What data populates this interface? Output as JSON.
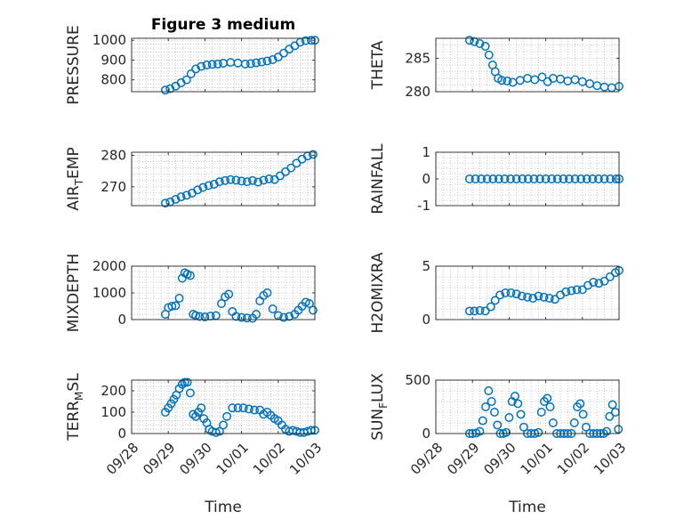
{
  "colors": {
    "marker": "#0072BD",
    "axis": "#262626",
    "grid": "#bdbdbd"
  },
  "chart_data": [
    {
      "type": "scatter",
      "key": "pressure",
      "title": "Figure 3 medium",
      "ylabel": "PRESSURE",
      "ylabel_parts": [],
      "xlim": [
        0,
        5
      ],
      "ylim": [
        740,
        1010
      ],
      "yticks": [
        800,
        900,
        1000
      ],
      "ytick_labels": [
        "800",
        "900",
        "1000"
      ],
      "xticks": [
        0,
        1,
        2,
        3,
        4,
        5
      ],
      "xtick_labels": [
        "09/28",
        "09/29",
        "09/30",
        "10/01",
        "10/02",
        "10/03"
      ],
      "show_xticklabels": false,
      "xlabel": "",
      "x": [
        0.92,
        1.05,
        1.2,
        1.35,
        1.5,
        1.62,
        1.75,
        1.9,
        2.05,
        2.2,
        2.35,
        2.5,
        2.7,
        2.9,
        3.1,
        3.25,
        3.4,
        3.55,
        3.7,
        3.85,
        4.0,
        4.15,
        4.3,
        4.45,
        4.6,
        4.75,
        4.9,
        5.0
      ],
      "y": [
        748,
        755,
        768,
        785,
        800,
        830,
        855,
        868,
        875,
        878,
        880,
        884,
        888,
        885,
        880,
        882,
        886,
        890,
        895,
        902,
        915,
        935,
        955,
        972,
        990,
        998,
        1000,
        1000
      ]
    },
    {
      "type": "scatter",
      "key": "theta",
      "title": "",
      "ylabel": "THETA",
      "ylabel_parts": [],
      "xlim": [
        0,
        5
      ],
      "ylim": [
        280,
        288
      ],
      "yticks": [
        280,
        285
      ],
      "ytick_labels": [
        "280",
        "285"
      ],
      "xticks": [
        0,
        1,
        2,
        3,
        4,
        5
      ],
      "xtick_labels": [
        "09/28",
        "09/29",
        "09/30",
        "10/01",
        "10/02",
        "10/03"
      ],
      "show_xticklabels": false,
      "xlabel": "",
      "x": [
        0.92,
        1.05,
        1.2,
        1.35,
        1.45,
        1.55,
        1.62,
        1.7,
        1.8,
        1.95,
        2.1,
        2.3,
        2.5,
        2.7,
        2.9,
        3.05,
        3.2,
        3.4,
        3.6,
        3.8,
        4.0,
        4.2,
        4.4,
        4.6,
        4.8,
        5.0
      ],
      "y": [
        287.7,
        287.5,
        287.2,
        286.8,
        285.5,
        284.0,
        283.0,
        282.0,
        281.7,
        281.6,
        281.4,
        281.7,
        282.0,
        281.8,
        282.2,
        281.5,
        282.0,
        281.9,
        281.6,
        281.8,
        281.5,
        281.2,
        280.9,
        280.7,
        280.6,
        280.8
      ]
    },
    {
      "type": "scatter",
      "key": "air_temp",
      "title": "",
      "ylabel": "",
      "ylabel_parts": [
        "AIR",
        "T",
        "EMP"
      ],
      "xlim": [
        0,
        5
      ],
      "ylim": [
        264,
        281
      ],
      "yticks": [
        270,
        280
      ],
      "ytick_labels": [
        "270",
        "280"
      ],
      "xticks": [
        0,
        1,
        2,
        3,
        4,
        5
      ],
      "xtick_labels": [
        "09/28",
        "09/29",
        "09/30",
        "10/01",
        "10/02",
        "10/03"
      ],
      "show_xticklabels": false,
      "xlabel": "",
      "x": [
        0.92,
        1.05,
        1.2,
        1.35,
        1.5,
        1.65,
        1.8,
        1.95,
        2.1,
        2.25,
        2.4,
        2.55,
        2.7,
        2.85,
        3.0,
        3.15,
        3.3,
        3.45,
        3.6,
        3.75,
        3.9,
        4.05,
        4.2,
        4.35,
        4.5,
        4.65,
        4.8,
        4.95
      ],
      "y": [
        264.8,
        265.2,
        266.0,
        266.8,
        267.3,
        268.0,
        269.0,
        269.8,
        270.4,
        270.8,
        271.6,
        272.0,
        272.3,
        272.1,
        271.8,
        271.6,
        272.0,
        271.5,
        272.1,
        272.5,
        272.3,
        273.5,
        274.8,
        276.0,
        277.5,
        278.8,
        279.8,
        280.3
      ]
    },
    {
      "type": "scatter",
      "key": "rainfall",
      "title": "",
      "ylabel": "RAINFALL",
      "ylabel_parts": [],
      "xlim": [
        0,
        5
      ],
      "ylim": [
        -1,
        1
      ],
      "yticks": [
        -1,
        0,
        1
      ],
      "ytick_labels": [
        "-1",
        "0",
        "1"
      ],
      "xticks": [
        0,
        1,
        2,
        3,
        4,
        5
      ],
      "xtick_labels": [
        "09/28",
        "09/29",
        "09/30",
        "10/01",
        "10/02",
        "10/03"
      ],
      "show_xticklabels": false,
      "xlabel": "",
      "x": [
        0.92,
        1.08,
        1.24,
        1.4,
        1.56,
        1.72,
        1.88,
        2.04,
        2.2,
        2.36,
        2.52,
        2.68,
        2.84,
        3.0,
        3.16,
        3.32,
        3.48,
        3.64,
        3.8,
        3.96,
        4.12,
        4.28,
        4.44,
        4.6,
        4.76,
        4.92,
        5.0
      ],
      "y": [
        0,
        0,
        0,
        0,
        0,
        0,
        0,
        0,
        0,
        0,
        0,
        0,
        0,
        0,
        0,
        0,
        0,
        0,
        0,
        0,
        0,
        0,
        0,
        0,
        0,
        0,
        0
      ]
    },
    {
      "type": "scatter",
      "key": "mixdepth",
      "title": "",
      "ylabel": "MIXDEPTH",
      "ylabel_parts": [],
      "xlim": [
        0,
        5
      ],
      "ylim": [
        0,
        2000
      ],
      "yticks": [
        0,
        1000,
        2000
      ],
      "ytick_labels": [
        "0",
        "1000",
        "2000"
      ],
      "xticks": [
        0,
        1,
        2,
        3,
        4,
        5
      ],
      "xtick_labels": [
        "09/28",
        "09/29",
        "09/30",
        "10/01",
        "10/02",
        "10/03"
      ],
      "show_xticklabels": false,
      "xlabel": "",
      "x": [
        0.92,
        1.0,
        1.1,
        1.2,
        1.3,
        1.38,
        1.45,
        1.52,
        1.6,
        1.68,
        1.75,
        1.85,
        2.0,
        2.15,
        2.3,
        2.45,
        2.55,
        2.65,
        2.75,
        2.85,
        3.0,
        3.15,
        3.3,
        3.4,
        3.5,
        3.6,
        3.7,
        3.85,
        4.0,
        4.15,
        4.3,
        4.45,
        4.55,
        4.65,
        4.75,
        4.85,
        4.95
      ],
      "y": [
        200,
        450,
        500,
        520,
        800,
        1550,
        1750,
        1700,
        1650,
        200,
        150,
        120,
        100,
        130,
        150,
        600,
        850,
        950,
        300,
        120,
        80,
        60,
        50,
        200,
        700,
        900,
        1000,
        400,
        150,
        80,
        120,
        200,
        350,
        500,
        650,
        600,
        350
      ]
    },
    {
      "type": "scatter",
      "key": "h2omixra",
      "title": "",
      "ylabel": "H2OMIXRA",
      "ylabel_parts": [],
      "xlim": [
        0,
        5
      ],
      "ylim": [
        0,
        5
      ],
      "yticks": [
        0,
        5
      ],
      "ytick_labels": [
        "0",
        "5"
      ],
      "xticks": [
        0,
        1,
        2,
        3,
        4,
        5
      ],
      "xtick_labels": [
        "09/28",
        "09/29",
        "09/30",
        "10/01",
        "10/02",
        "10/03"
      ],
      "show_xticklabels": false,
      "xlabel": "",
      "x": [
        0.92,
        1.05,
        1.2,
        1.35,
        1.5,
        1.62,
        1.75,
        1.9,
        2.05,
        2.2,
        2.35,
        2.5,
        2.65,
        2.8,
        2.95,
        3.1,
        3.25,
        3.4,
        3.55,
        3.7,
        3.85,
        4.0,
        4.15,
        4.3,
        4.45,
        4.6,
        4.75,
        4.9,
        5.0
      ],
      "y": [
        0.8,
        0.8,
        0.85,
        0.8,
        1.2,
        1.8,
        2.3,
        2.5,
        2.5,
        2.4,
        2.2,
        2.1,
        2.0,
        2.2,
        2.1,
        2.0,
        1.9,
        2.3,
        2.6,
        2.7,
        2.8,
        2.8,
        3.2,
        3.5,
        3.4,
        3.6,
        4.0,
        4.4,
        4.6
      ]
    },
    {
      "type": "scatter",
      "key": "terr_msl",
      "title": "",
      "ylabel": "",
      "ylabel_parts": [
        "TERR",
        "M",
        "SL"
      ],
      "xlim": [
        0,
        5
      ],
      "ylim": [
        0,
        250
      ],
      "yticks": [
        0,
        100,
        200
      ],
      "ytick_labels": [
        "0",
        "100",
        "200"
      ],
      "xticks": [
        0,
        1,
        2,
        3,
        4,
        5
      ],
      "xtick_labels": [
        "09/28",
        "09/29",
        "09/30",
        "10/01",
        "10/02",
        "10/03"
      ],
      "show_xticklabels": true,
      "xlabel": "Time",
      "x": [
        0.92,
        1.0,
        1.08,
        1.15,
        1.22,
        1.3,
        1.38,
        1.45,
        1.52,
        1.6,
        1.68,
        1.75,
        1.82,
        1.9,
        1.97,
        2.05,
        2.12,
        2.2,
        2.3,
        2.4,
        2.5,
        2.6,
        2.75,
        2.9,
        3.05,
        3.2,
        3.35,
        3.5,
        3.6,
        3.7,
        3.8,
        3.9,
        4.0,
        4.1,
        4.2,
        4.3,
        4.4,
        4.5,
        4.6,
        4.7,
        4.8,
        4.9,
        5.0
      ],
      "y": [
        100,
        120,
        140,
        160,
        180,
        210,
        230,
        240,
        240,
        190,
        90,
        80,
        100,
        120,
        70,
        50,
        20,
        10,
        5,
        10,
        40,
        80,
        120,
        120,
        120,
        115,
        110,
        110,
        90,
        100,
        85,
        70,
        60,
        40,
        20,
        10,
        15,
        10,
        5,
        5,
        10,
        15,
        15
      ]
    },
    {
      "type": "scatter",
      "key": "sun_flux",
      "title": "",
      "ylabel": "",
      "ylabel_parts": [
        "SUN",
        "F",
        "LUX"
      ],
      "xlim": [
        0,
        5
      ],
      "ylim": [
        0,
        500
      ],
      "yticks": [
        0,
        500
      ],
      "ytick_labels": [
        "0",
        "500"
      ],
      "xticks": [
        0,
        1,
        2,
        3,
        4,
        5
      ],
      "xtick_labels": [
        "09/28",
        "09/29",
        "09/30",
        "10/01",
        "10/02",
        "10/03"
      ],
      "show_xticklabels": true,
      "xlabel": "Time",
      "x": [
        0.92,
        1.0,
        1.1,
        1.2,
        1.28,
        1.36,
        1.44,
        1.52,
        1.6,
        1.68,
        1.76,
        1.84,
        1.92,
        2.0,
        2.08,
        2.16,
        2.24,
        2.32,
        2.4,
        2.5,
        2.6,
        2.7,
        2.8,
        2.88,
        2.96,
        3.04,
        3.12,
        3.2,
        3.3,
        3.4,
        3.5,
        3.6,
        3.7,
        3.78,
        3.86,
        3.94,
        4.02,
        4.1,
        4.2,
        4.3,
        4.4,
        4.5,
        4.58,
        4.66,
        4.74,
        4.82,
        4.9,
        4.98
      ],
      "y": [
        0,
        0,
        5,
        20,
        120,
        250,
        400,
        300,
        200,
        80,
        0,
        0,
        10,
        150,
        300,
        350,
        280,
        180,
        60,
        0,
        0,
        0,
        10,
        200,
        300,
        330,
        250,
        100,
        0,
        0,
        0,
        0,
        0,
        100,
        250,
        280,
        180,
        60,
        0,
        0,
        0,
        0,
        0,
        20,
        160,
        270,
        200,
        40
      ]
    }
  ]
}
